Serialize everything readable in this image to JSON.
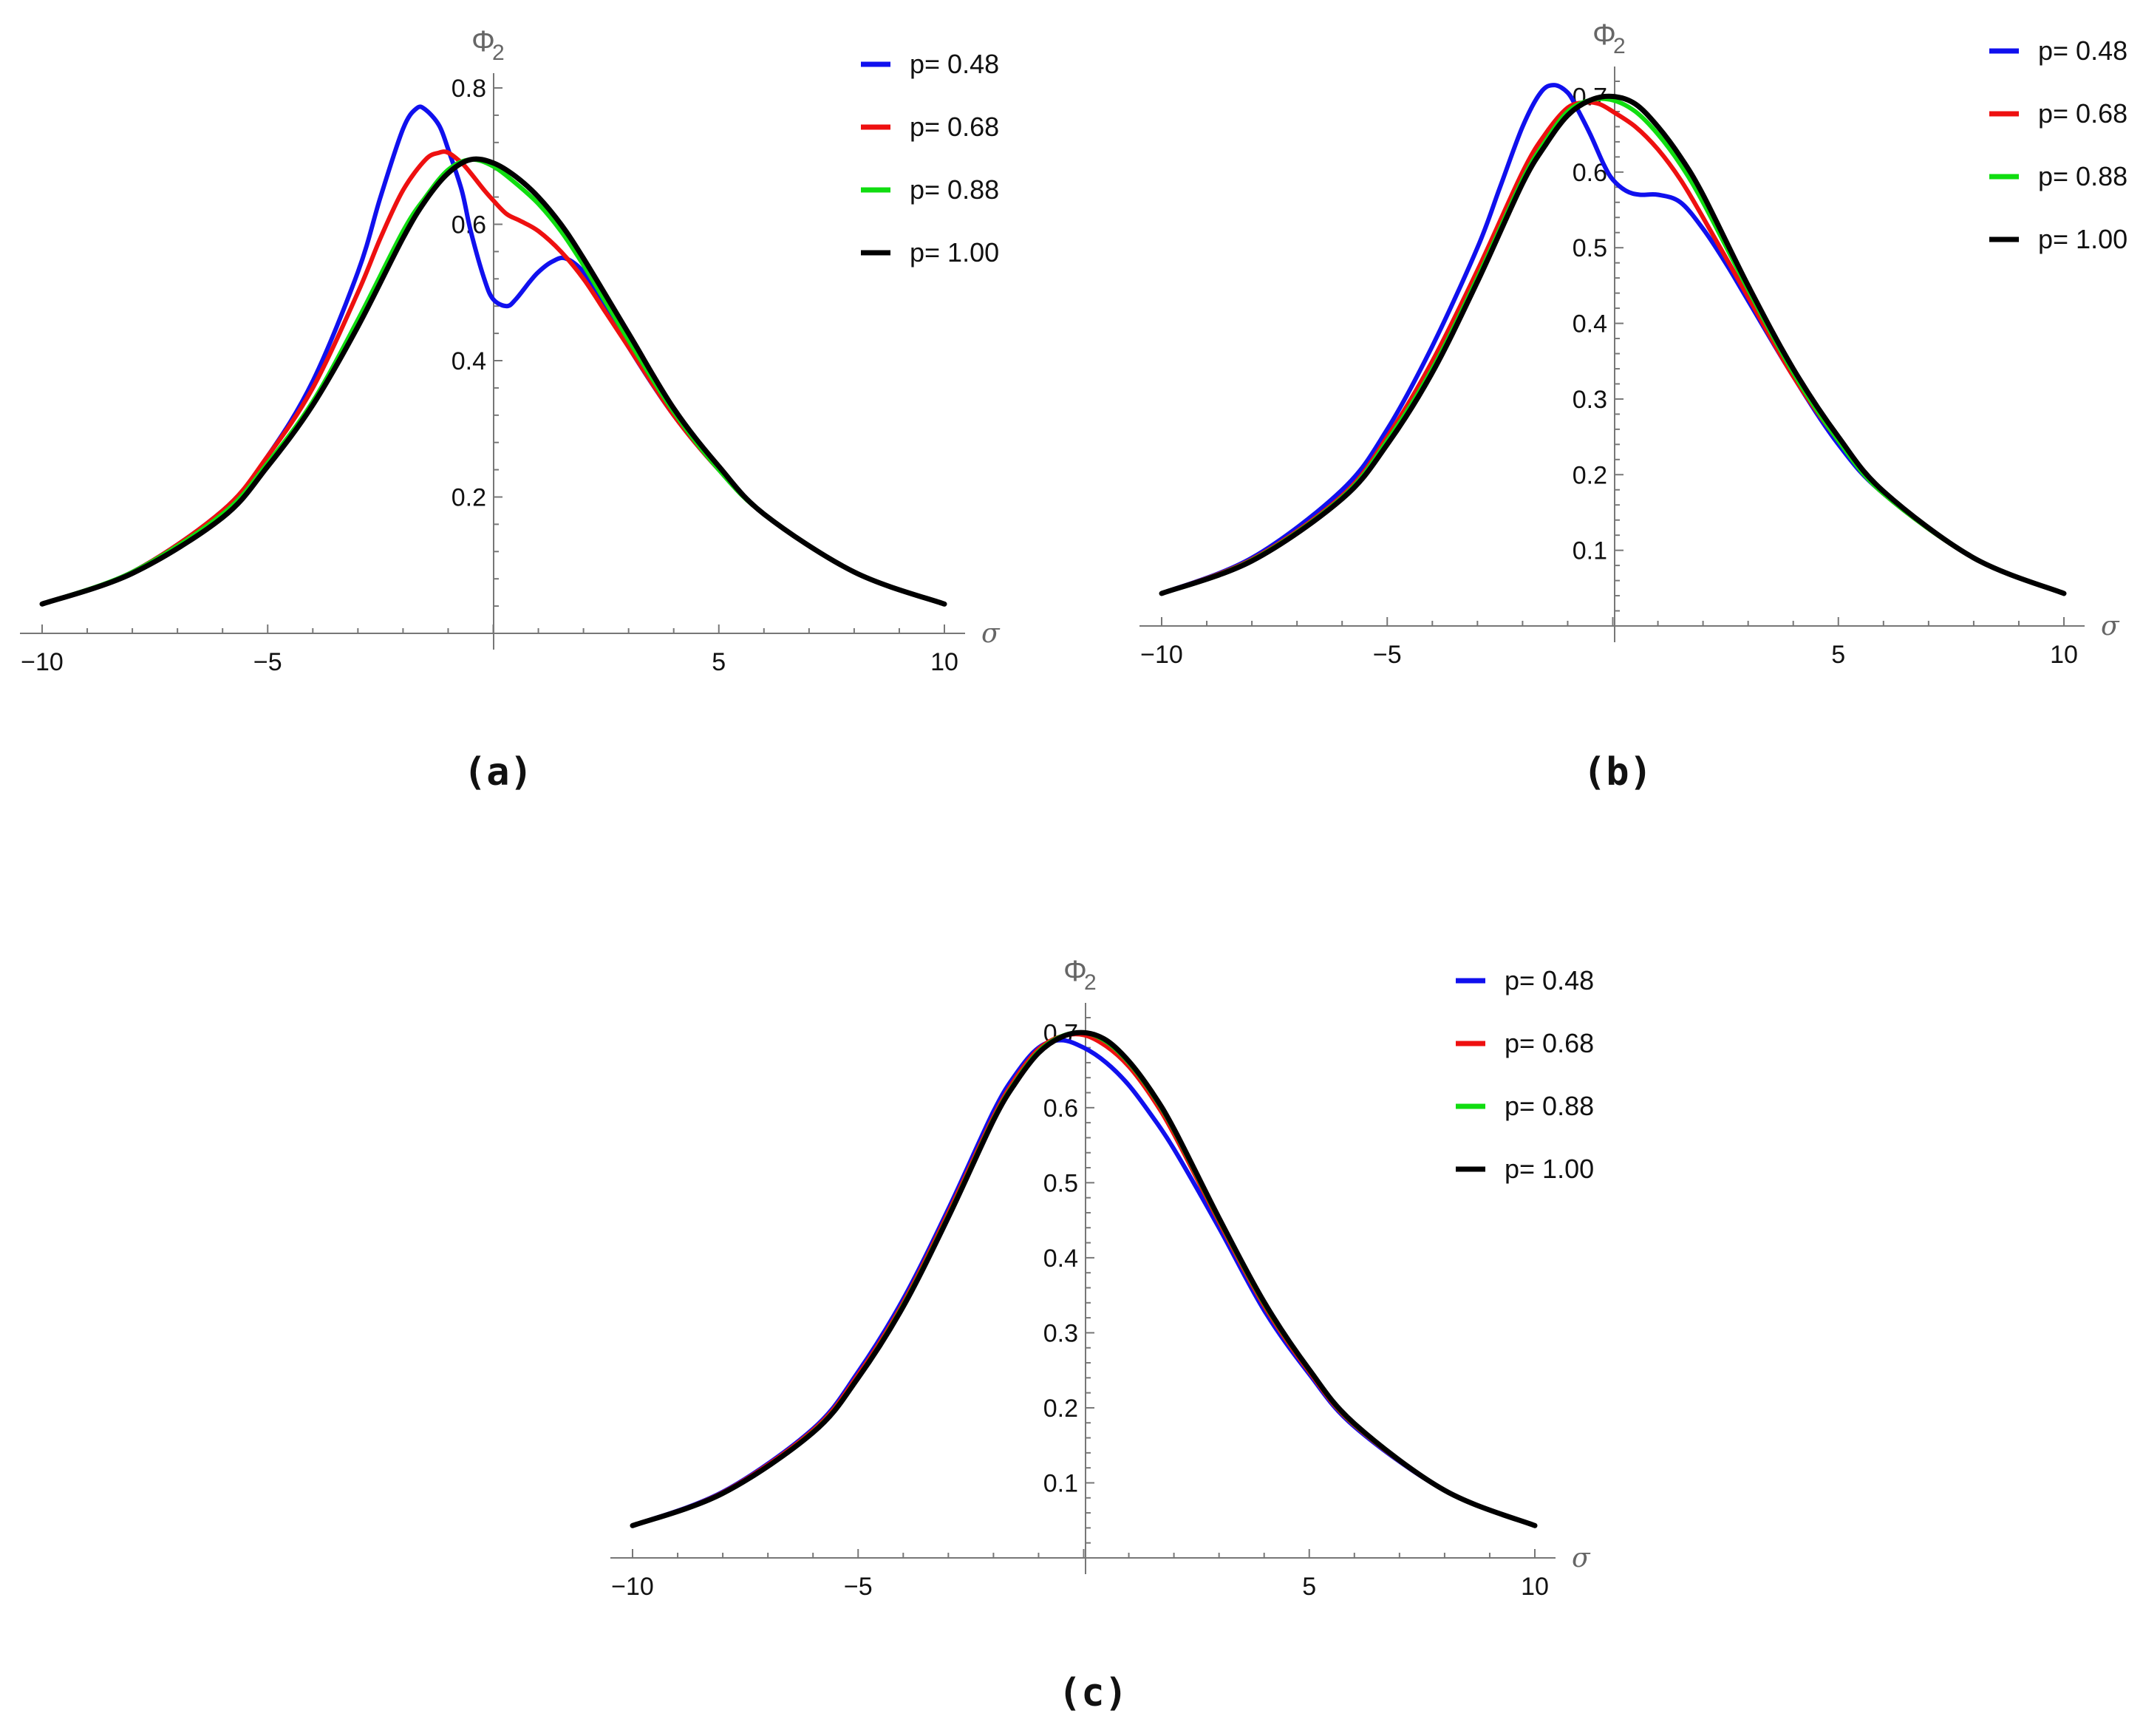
{
  "chart_data": [
    {
      "type": "line",
      "panel": "(a)",
      "xlabel": "σ",
      "ylabel": "Φ",
      "ylabel_sub": "2",
      "xlim": [
        -10,
        10
      ],
      "ylim": [
        0,
        0.8
      ],
      "xticks": [
        -10,
        -5,
        5,
        10
      ],
      "xtick_labels": [
        "−10",
        "−5",
        "5",
        "10"
      ],
      "yticks": [
        0.2,
        0.4,
        0.6,
        0.8
      ],
      "ytick_labels": [
        "0.2",
        "0.4",
        "0.6",
        "0.8"
      ],
      "legend": [
        "p= 0.48",
        "p= 0.68",
        "p= 0.88",
        "p= 1.00"
      ],
      "colors": [
        "#1010ee",
        "#ee1010",
        "#10dd10",
        "#000000"
      ],
      "series": [
        {
          "name": "p= 0.48",
          "x": [
            -10,
            -8,
            -6,
            -5,
            -4,
            -3,
            -2.5,
            -2,
            -1.7,
            -1.5,
            -1.2,
            -1,
            -0.7,
            -0.5,
            -0.2,
            0,
            0.3,
            0.5,
            0.8,
            1,
            1.3,
            1.6,
            2,
            2.5,
            3,
            4,
            5,
            6,
            8,
            10
          ],
          "values": [
            0.043,
            0.09,
            0.18,
            0.26,
            0.37,
            0.53,
            0.64,
            0.74,
            0.77,
            0.768,
            0.745,
            0.71,
            0.65,
            0.59,
            0.52,
            0.49,
            0.48,
            0.49,
            0.515,
            0.53,
            0.545,
            0.55,
            0.53,
            0.48,
            0.42,
            0.32,
            0.24,
            0.175,
            0.09,
            0.043
          ]
        },
        {
          "name": "p= 0.68",
          "x": [
            -10,
            -8,
            -6,
            -5,
            -4,
            -3,
            -2.5,
            -2,
            -1.5,
            -1.2,
            -1,
            -0.7,
            -0.5,
            -0.2,
            0,
            0.3,
            0.6,
            1,
            1.5,
            2,
            2.5,
            3,
            4,
            5,
            6,
            8,
            10
          ],
          "values": [
            0.043,
            0.09,
            0.18,
            0.26,
            0.36,
            0.5,
            0.58,
            0.65,
            0.695,
            0.705,
            0.705,
            0.69,
            0.675,
            0.65,
            0.635,
            0.615,
            0.605,
            0.59,
            0.56,
            0.52,
            0.47,
            0.42,
            0.32,
            0.24,
            0.175,
            0.09,
            0.043
          ]
        },
        {
          "name": "p= 0.88",
          "x": [
            -10,
            -8,
            -6,
            -5,
            -4,
            -3,
            -2,
            -1.5,
            -1,
            -0.5,
            0,
            0.5,
            1,
            1.5,
            2,
            3,
            4,
            5,
            6,
            8,
            10
          ],
          "values": [
            0.043,
            0.09,
            0.175,
            0.25,
            0.34,
            0.46,
            0.59,
            0.64,
            0.68,
            0.695,
            0.685,
            0.66,
            0.63,
            0.59,
            0.54,
            0.43,
            0.325,
            0.24,
            0.175,
            0.09,
            0.043
          ]
        },
        {
          "name": "p= 1.00",
          "x": [
            -10,
            -8,
            -6,
            -5,
            -4,
            -3,
            -2,
            -1.5,
            -1,
            -0.5,
            0,
            0.5,
            1,
            1.5,
            2,
            3,
            4,
            5,
            6,
            8,
            10
          ],
          "values": [
            0.043,
            0.088,
            0.17,
            0.245,
            0.335,
            0.45,
            0.58,
            0.635,
            0.675,
            0.695,
            0.69,
            0.67,
            0.64,
            0.6,
            0.55,
            0.44,
            0.33,
            0.245,
            0.175,
            0.09,
            0.043
          ]
        }
      ]
    },
    {
      "type": "line",
      "panel": "(b)",
      "xlabel": "σ",
      "ylabel": "Φ",
      "ylabel_sub": "2",
      "xlim": [
        -10,
        10
      ],
      "ylim": [
        0,
        0.72
      ],
      "xticks": [
        -10,
        -5,
        5,
        10
      ],
      "xtick_labels": [
        "−10",
        "−5",
        "5",
        "10"
      ],
      "yticks": [
        0.1,
        0.2,
        0.3,
        0.4,
        0.5,
        0.6,
        0.7
      ],
      "ytick_labels": [
        "0.1",
        "0.2",
        "0.3",
        "0.4",
        "0.5",
        "0.6",
        "0.7"
      ],
      "legend": [
        "p= 0.48",
        "p= 0.68",
        "p= 0.88",
        "p= 1.00"
      ],
      "colors": [
        "#1010ee",
        "#ee1010",
        "#10dd10",
        "#000000"
      ],
      "series": [
        {
          "name": "p= 0.48",
          "x": [
            -10,
            -8,
            -6,
            -5,
            -4,
            -3,
            -2.5,
            -2,
            -1.6,
            -1.3,
            -1,
            -0.8,
            -0.5,
            -0.2,
            0,
            0.3,
            0.6,
            1,
            1.5,
            2,
            2.5,
            3,
            4,
            5,
            6,
            8,
            10
          ],
          "values": [
            0.043,
            0.09,
            0.18,
            0.26,
            0.37,
            0.5,
            0.58,
            0.66,
            0.705,
            0.715,
            0.705,
            0.685,
            0.65,
            0.61,
            0.59,
            0.575,
            0.57,
            0.57,
            0.56,
            0.525,
            0.48,
            0.43,
            0.33,
            0.24,
            0.175,
            0.09,
            0.043
          ]
        },
        {
          "name": "p= 0.68",
          "x": [
            -10,
            -8,
            -6,
            -5,
            -4,
            -3,
            -2,
            -1.5,
            -1,
            -0.6,
            -0.3,
            0,
            0.5,
            1,
            1.5,
            2,
            3,
            4,
            5,
            6,
            8,
            10
          ],
          "values": [
            0.043,
            0.088,
            0.172,
            0.25,
            0.35,
            0.47,
            0.6,
            0.65,
            0.685,
            0.692,
            0.69,
            0.68,
            0.66,
            0.63,
            0.59,
            0.54,
            0.435,
            0.33,
            0.245,
            0.175,
            0.09,
            0.043
          ]
        },
        {
          "name": "p= 0.88",
          "x": [
            -10,
            -8,
            -6,
            -5,
            -4,
            -3,
            -2,
            -1.5,
            -1,
            -0.5,
            0,
            0.5,
            1,
            1.5,
            2,
            3,
            4,
            5,
            6,
            8,
            10
          ],
          "values": [
            0.043,
            0.087,
            0.17,
            0.245,
            0.34,
            0.46,
            0.59,
            0.64,
            0.68,
            0.695,
            0.695,
            0.68,
            0.65,
            0.61,
            0.56,
            0.445,
            0.335,
            0.245,
            0.175,
            0.09,
            0.043
          ]
        },
        {
          "name": "p= 1.00",
          "x": [
            -10,
            -8,
            -6,
            -5,
            -4,
            -3,
            -2,
            -1.5,
            -1,
            -0.5,
            0,
            0.5,
            1,
            1.5,
            2,
            3,
            4,
            5,
            6,
            8,
            10
          ],
          "values": [
            0.043,
            0.086,
            0.168,
            0.24,
            0.335,
            0.455,
            0.585,
            0.635,
            0.675,
            0.695,
            0.7,
            0.69,
            0.66,
            0.62,
            0.57,
            0.45,
            0.34,
            0.25,
            0.178,
            0.09,
            0.043
          ]
        }
      ]
    },
    {
      "type": "line",
      "panel": "(c)",
      "xlabel": "σ",
      "ylabel": "Φ",
      "ylabel_sub": "2",
      "xlim": [
        -10,
        10
      ],
      "ylim": [
        0,
        0.72
      ],
      "xticks": [
        -10,
        -5,
        5,
        10
      ],
      "xtick_labels": [
        "−10",
        "−5",
        "5",
        "10"
      ],
      "yticks": [
        0.1,
        0.2,
        0.3,
        0.4,
        0.5,
        0.6,
        0.7
      ],
      "ytick_labels": [
        "0.1",
        "0.2",
        "0.3",
        "0.4",
        "0.5",
        "0.6",
        "0.7"
      ],
      "legend": [
        "p= 0.48",
        "p= 0.68",
        "p= 0.88",
        "p= 1.00"
      ],
      "colors": [
        "#1010ee",
        "#ee1010",
        "#10dd10",
        "#000000"
      ],
      "series": [
        {
          "name": "p= 0.48",
          "x": [
            -10,
            -8,
            -6,
            -5,
            -4,
            -3,
            -2,
            -1.5,
            -1,
            -0.5,
            0,
            0.5,
            1,
            1.5,
            2,
            3,
            4,
            5,
            6,
            8,
            10
          ],
          "values": [
            0.043,
            0.088,
            0.172,
            0.248,
            0.345,
            0.465,
            0.595,
            0.645,
            0.68,
            0.69,
            0.68,
            0.66,
            0.63,
            0.59,
            0.545,
            0.44,
            0.33,
            0.245,
            0.175,
            0.09,
            0.043
          ]
        },
        {
          "name": "p= 0.68",
          "x": [
            -10,
            -8,
            -6,
            -5,
            -4,
            -3,
            -2,
            -1.5,
            -1,
            -0.5,
            0,
            0.5,
            1,
            1.5,
            2,
            3,
            4,
            5,
            6,
            8,
            10
          ],
          "values": [
            0.043,
            0.087,
            0.17,
            0.244,
            0.34,
            0.46,
            0.588,
            0.64,
            0.678,
            0.695,
            0.697,
            0.682,
            0.655,
            0.615,
            0.565,
            0.448,
            0.336,
            0.248,
            0.177,
            0.09,
            0.043
          ]
        },
        {
          "name": "p= 0.88",
          "x": [
            -10,
            -8,
            -6,
            -5,
            -4,
            -3,
            -2,
            -1.5,
            -1,
            -0.5,
            0,
            0.5,
            1,
            1.5,
            2,
            3,
            4,
            5,
            6,
            8,
            10
          ],
          "values": [
            0.043,
            0.086,
            0.168,
            0.241,
            0.337,
            0.456,
            0.585,
            0.636,
            0.675,
            0.695,
            0.7,
            0.688,
            0.66,
            0.62,
            0.57,
            0.451,
            0.339,
            0.25,
            0.178,
            0.09,
            0.043
          ]
        },
        {
          "name": "p= 1.00",
          "x": [
            -10,
            -8,
            -6,
            -5,
            -4,
            -3,
            -2,
            -1.5,
            -1,
            -0.5,
            0,
            0.5,
            1,
            1.5,
            2,
            3,
            4,
            5,
            6,
            8,
            10
          ],
          "values": [
            0.043,
            0.086,
            0.167,
            0.24,
            0.335,
            0.454,
            0.583,
            0.634,
            0.673,
            0.694,
            0.7,
            0.69,
            0.662,
            0.622,
            0.572,
            0.453,
            0.341,
            0.251,
            0.179,
            0.09,
            0.043
          ]
        }
      ]
    }
  ]
}
